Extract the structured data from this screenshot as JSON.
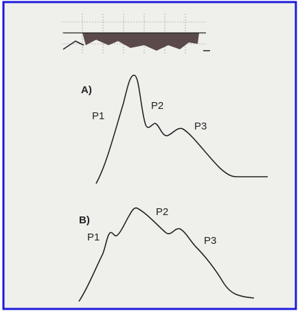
{
  "panels": [
    {
      "label": "A)",
      "peaks": [
        "P1",
        "P2",
        "P3"
      ]
    },
    {
      "label": "B)",
      "peaks": [
        "P1",
        "P2",
        "P3"
      ]
    }
  ]
}
